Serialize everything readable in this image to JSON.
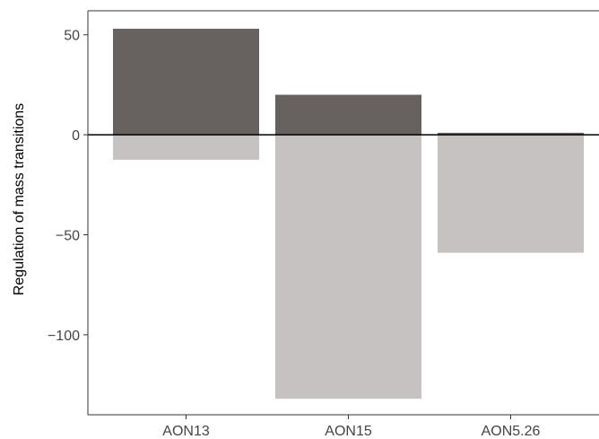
{
  "chart_data": {
    "type": "bar",
    "stacked": "diverging",
    "categories": [
      "AON13",
      "AON15",
      "AON5.26"
    ],
    "series": [
      {
        "values": [
          53,
          20,
          1
        ],
        "color": "#67625f"
      },
      {
        "values": [
          -12.5,
          -132,
          -59
        ],
        "color": "#c7c2c2"
      }
    ],
    "xlabel": "",
    "ylabel": "Regulation of mass transitions",
    "ylim": [
      -140,
      62
    ],
    "yticks": [
      50,
      0,
      -50,
      -100
    ],
    "ytick_labels": [
      "50",
      "0",
      "−50",
      "−100"
    ],
    "zero_line": true,
    "grid": false,
    "legend": false
  }
}
